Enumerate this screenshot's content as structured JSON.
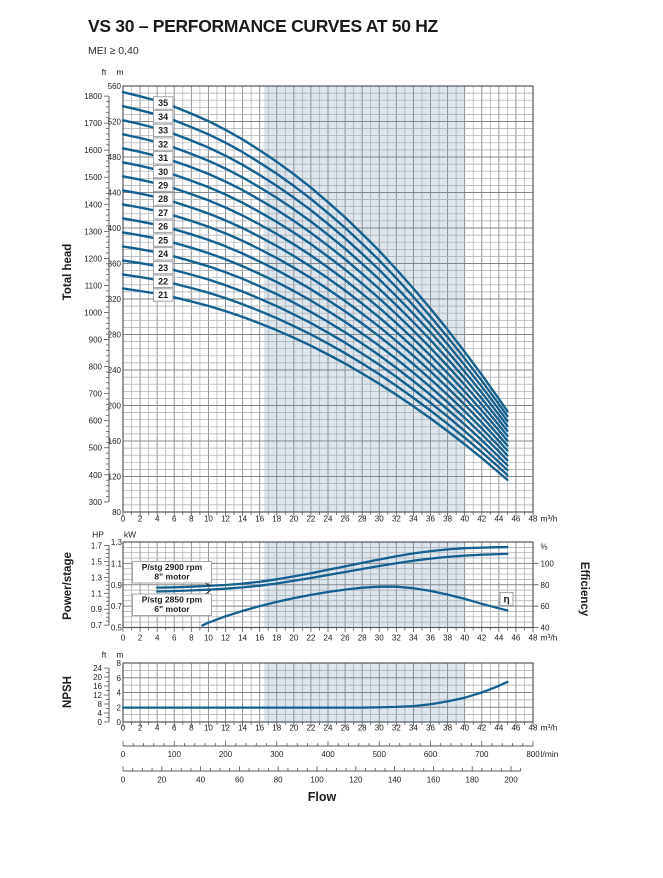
{
  "title": "VS 30 – PERFORMANCE CURVES AT 50 HZ",
  "subtitle": "MEI ≥ 0,40",
  "flow_label": "Flow",
  "colors": {
    "curve": "#15608f",
    "band": "#dde6ec",
    "grid_minor": "#a6abb0",
    "grid_mid": "#84898d",
    "grid_major": "#54585c",
    "text": "#1d1d1b",
    "box_border": "#999da1"
  },
  "operating_band_m3h": [
    16.5,
    40
  ],
  "chart_data": [
    {
      "id": "head",
      "type": "line",
      "ylabel": "Total head",
      "x_axis": {
        "unit": "m³/h",
        "min": 0,
        "max": 48,
        "label_step": 2,
        "grid_step": 1
      },
      "y_axis_m": {
        "unit": "m",
        "min": 80,
        "max": 560,
        "label_step": 40,
        "grid_step": 8
      },
      "y_axis_ft": {
        "unit": "ft",
        "min": 300,
        "max": 1800,
        "label_step": 100,
        "tick_step": 20
      },
      "stages": [
        21,
        22,
        23,
        24,
        25,
        26,
        27,
        28,
        29,
        30,
        31,
        32,
        33,
        34,
        35
      ],
      "stage_label_at_q": 4.7,
      "q_m3h": [
        0,
        2,
        4,
        6,
        8,
        10,
        12,
        14,
        16,
        18,
        20,
        22,
        24,
        26,
        28,
        30,
        32,
        34,
        36,
        38,
        40,
        42,
        44,
        45
      ],
      "head_per_stage_m": [
        15.8,
        15.67,
        15.52,
        15.33,
        15.11,
        14.87,
        14.59,
        14.28,
        13.93,
        13.56,
        13.16,
        12.73,
        12.26,
        11.77,
        11.24,
        10.69,
        10.1,
        9.48,
        8.83,
        8.15,
        7.44,
        6.7,
        5.93,
        5.53
      ]
    },
    {
      "id": "power",
      "type": "line",
      "ylabel": "Power/stage",
      "ylabel_right": "Efficiency",
      "x_axis": {
        "unit": "m³/h",
        "min": 0,
        "max": 48,
        "label_step": 2,
        "grid_step": 1
      },
      "y_axis_kw": {
        "unit": "kW",
        "min": 0.5,
        "max": 1.3,
        "label_step": 0.2,
        "grid_step": 0.05
      },
      "y_axis_hp": {
        "unit": "HP",
        "min": 0.7,
        "max": 1.7,
        "label_step": 0.2,
        "tick_step": 0.05
      },
      "y_axis_pct": {
        "unit": "%",
        "labels": [
          100,
          80,
          60,
          40
        ],
        "pct_100_at_kw": 1.1,
        "pct_40_at_kw": 0.5
      },
      "series": [
        {
          "name": "power-2900rpm",
          "label_line1": "P/stg 2900 rpm",
          "label_line2": "8\" motor",
          "q_m3h": [
            4,
            6,
            8,
            10,
            12,
            14,
            16,
            18,
            20,
            22,
            24,
            26,
            28,
            30,
            32,
            34,
            36,
            38,
            40,
            42,
            44,
            45
          ],
          "kw": [
            0.872,
            0.876,
            0.882,
            0.889,
            0.898,
            0.911,
            0.928,
            0.951,
            0.978,
            1.008,
            1.04,
            1.072,
            1.104,
            1.136,
            1.166,
            1.193,
            1.215,
            1.231,
            1.242,
            1.248,
            1.251,
            1.252
          ]
        },
        {
          "name": "power-2850rpm",
          "label_line1": "P/stg 2850 rpm",
          "label_line2": "6\" motor",
          "q_m3h": [
            4,
            6,
            8,
            10,
            12,
            14,
            16,
            18,
            20,
            22,
            24,
            26,
            28,
            30,
            32,
            34,
            36,
            38,
            40,
            42,
            44,
            45
          ],
          "kw": [
            0.837,
            0.841,
            0.847,
            0.854,
            0.863,
            0.875,
            0.891,
            0.912,
            0.937,
            0.963,
            0.991,
            1.019,
            1.047,
            1.075,
            1.101,
            1.125,
            1.145,
            1.161,
            1.173,
            1.181,
            1.187,
            1.189
          ]
        },
        {
          "name": "efficiency",
          "label": "η",
          "q_m3h": [
            9.3,
            10,
            12,
            14,
            16,
            18,
            20,
            22,
            24,
            26,
            28,
            30,
            32,
            34,
            36,
            38,
            40,
            42,
            44,
            45
          ],
          "eff_pct": [
            42,
            44.5,
            50.5,
            55.5,
            60,
            64,
            67.5,
            70.5,
            73.2,
            75.5,
            77.2,
            78.2,
            78.2,
            76.8,
            74.2,
            70.8,
            66.8,
            62.2,
            58,
            56
          ]
        }
      ]
    },
    {
      "id": "npsh",
      "type": "line",
      "ylabel": "NPSH",
      "x_axis": {
        "unit": "m³/h",
        "min": 0,
        "max": 48,
        "label_step": 2,
        "grid_step": 1
      },
      "y_axis_m": {
        "unit": "m",
        "min": 0,
        "max": 8,
        "label_step": 2,
        "grid_step": 1
      },
      "y_axis_ft": {
        "unit": "ft",
        "min": 0,
        "max": 24,
        "label_step": 4,
        "tick_step": 2
      },
      "q_m3h": [
        0,
        4,
        8,
        12,
        16,
        20,
        24,
        28,
        30,
        32,
        34,
        36,
        38,
        40,
        42,
        44,
        45
      ],
      "npsh_m": [
        1.95,
        1.95,
        1.95,
        1.95,
        1.95,
        1.95,
        1.95,
        1.95,
        2.0,
        2.05,
        2.15,
        2.4,
        2.8,
        3.3,
        4.0,
        4.9,
        5.45
      ]
    }
  ],
  "extra_flow_scales": [
    {
      "unit": "l/min",
      "min": 0,
      "max": 800,
      "label_step": 100,
      "tick_step": 20,
      "m3h_per_unit": 0.06
    },
    {
      "unit": "",
      "min": 0,
      "max": 205,
      "label_max": 200,
      "label_step": 20,
      "tick_step": 5,
      "m3h_per_unit": 0.22712
    }
  ]
}
